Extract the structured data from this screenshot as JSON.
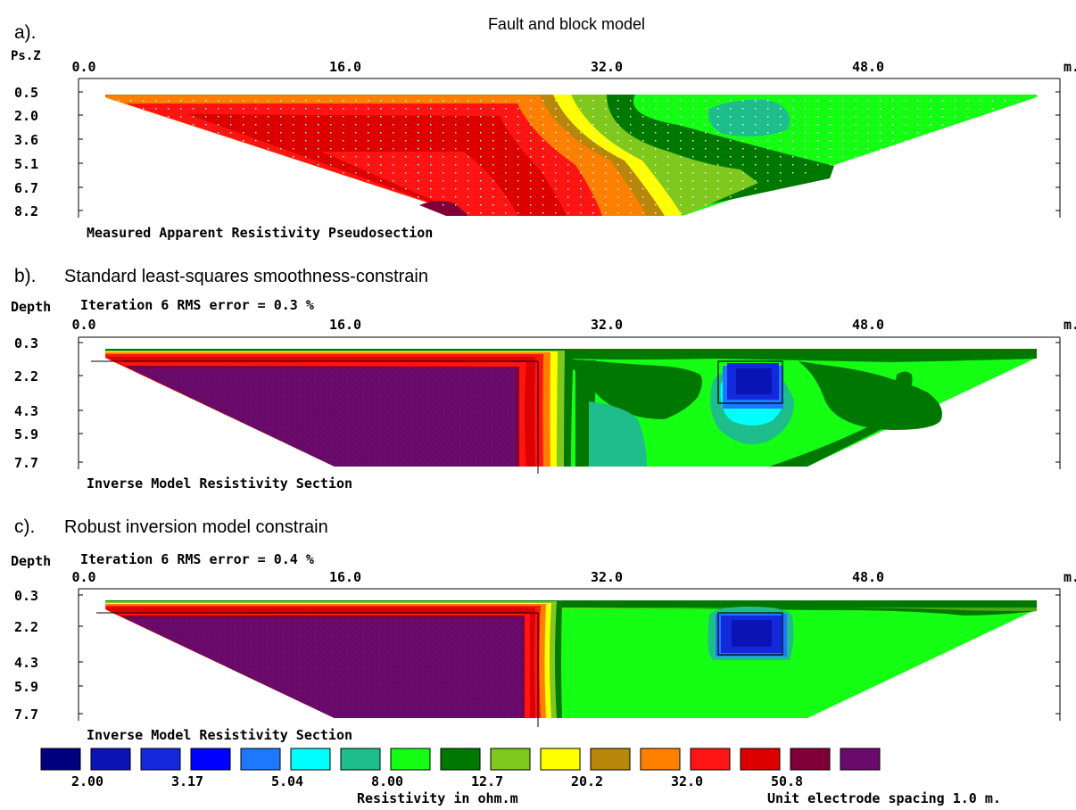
{
  "figure": {
    "title": "Fault and block model",
    "colorbar": {
      "colors": [
        "#00007f",
        "#0a14b4",
        "#1428dc",
        "#0000ff",
        "#1e78ff",
        "#00ffff",
        "#1ebe8c",
        "#14ff14",
        "#007800",
        "#7fc81e",
        "#ffff00",
        "#b8860b",
        "#ff7f00",
        "#ff1414",
        "#dc0000",
        "#7f0038",
        "#6a0a6a"
      ],
      "tick_labels": [
        "2.00",
        "3.17",
        "5.04",
        "8.00",
        "12.7",
        "20.2",
        "32.0",
        "50.8"
      ],
      "tick_after_box": [
        1,
        3,
        5,
        7,
        9,
        11,
        13,
        15
      ],
      "label": "Resistivity in ohm.m",
      "note": "Unit electrode spacing 1.0 m."
    }
  },
  "chart_data": [
    {
      "type": "heatmap",
      "panel_label": "a).",
      "title": "",
      "subtitle": "",
      "ylabel": "Ps.Z",
      "xunit": "m.",
      "x_ticks": [
        "0.0",
        "16.0",
        "32.0",
        "48.0"
      ],
      "y_ticks": [
        "0.5",
        "2.0",
        "3.6",
        "5.1",
        "6.7",
        "8.2"
      ],
      "xlim": [
        0,
        66
      ],
      "ylim": [
        0.5,
        8.2
      ],
      "caption": "Measured Apparent Resistivity Pseudosection",
      "values_description": [
        {
          "region": "left (x 2-30)",
          "resistivity_range": "32.0-50.8+"
        },
        {
          "region": "transition (x 28-40)",
          "resistivity_range": "12.7-32.0"
        },
        {
          "region": "right (x 32-65)",
          "resistivity_range": "8.00-12.7"
        }
      ]
    },
    {
      "type": "heatmap",
      "panel_label": "b).",
      "title": "Standard least-squares smoothness-constrain",
      "subtitle": "Iteration 6 RMS error = 0.3 %",
      "ylabel": "Depth",
      "xunit": "m.",
      "x_ticks": [
        "0.0",
        "16.0",
        "32.0",
        "48.0"
      ],
      "y_ticks": [
        "0.3",
        "2.2",
        "4.3",
        "5.9",
        "7.7"
      ],
      "xlim": [
        0,
        66
      ],
      "ylim": [
        0.3,
        7.7
      ],
      "caption": "Inverse Model Resistivity Section",
      "values_description": [
        {
          "region": "block left of fault (x 2-31)",
          "resistivity_range": ">50.8"
        },
        {
          "region": "right of fault (x 31-65)",
          "resistivity_range": "8.00-12.7"
        },
        {
          "region": "low-resistivity block (x 44-48)",
          "resistivity_range": "2.00-3.17"
        }
      ]
    },
    {
      "type": "heatmap",
      "panel_label": "c).",
      "title": "Robust inversion model constrain",
      "subtitle": "Iteration 6 RMS error = 0.4 %",
      "ylabel": "Depth",
      "xunit": "m.",
      "x_ticks": [
        "0.0",
        "16.0",
        "32.0",
        "48.0"
      ],
      "y_ticks": [
        "0.3",
        "2.2",
        "4.3",
        "5.9",
        "7.7"
      ],
      "xlim": [
        0,
        66
      ],
      "ylim": [
        0.3,
        7.7
      ],
      "caption": "Inverse Model Resistivity Section",
      "values_description": [
        {
          "region": "block left of fault (x 2-31)",
          "resistivity_range": ">50.8"
        },
        {
          "region": "right of fault (x 31-65)",
          "resistivity_range": "8.00"
        },
        {
          "region": "low-resistivity block (x 44-48)",
          "resistivity_range": "2.00-3.17"
        }
      ]
    }
  ]
}
